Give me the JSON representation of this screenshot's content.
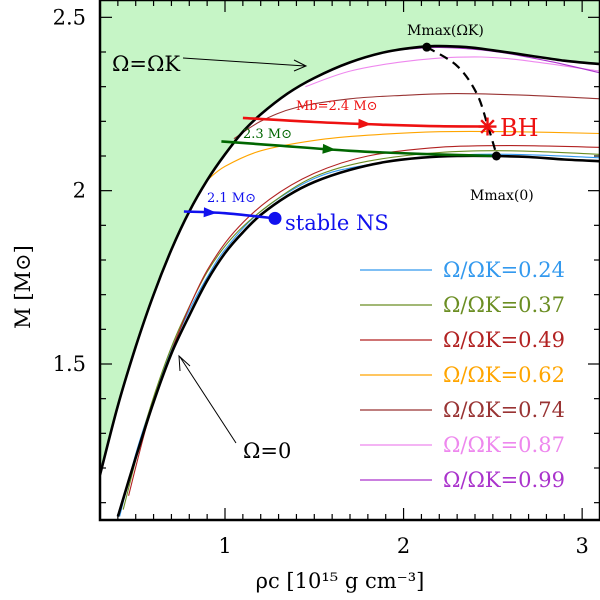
{
  "chart_data": {
    "type": "line",
    "xlabel": "ρc [10¹⁵ g cm⁻³]",
    "ylabel": "M [M⊙]",
    "xlim": [
      0.3,
      3.1
    ],
    "ylim": [
      1.05,
      2.55
    ],
    "xticks": [
      1,
      2,
      3
    ],
    "yticks": [
      1.5,
      2,
      2.5
    ],
    "grid": false,
    "legend_position": "bottom-right",
    "colors": {
      "stable_region_fill": "#c6f5c6",
      "kepler_sequence": "#000000",
      "static_sequence": "#000000",
      "stability_limit": "#000000",
      "track_2_4": "#ee1111",
      "track_2_3": "#006600",
      "track_2_1": "#1111ee"
    },
    "boundary_curves": {
      "kepler": {
        "name": "Ω=ΩK",
        "points": [
          [
            0.3,
            1.18
          ],
          [
            0.4,
            1.38
          ],
          [
            0.5,
            1.55
          ],
          [
            0.6,
            1.7
          ],
          [
            0.7,
            1.83
          ],
          [
            0.8,
            1.94
          ],
          [
            0.9,
            2.03
          ],
          [
            1.0,
            2.105
          ],
          [
            1.1,
            2.17
          ],
          [
            1.2,
            2.22
          ],
          [
            1.35,
            2.28
          ],
          [
            1.5,
            2.325
          ],
          [
            1.7,
            2.37
          ],
          [
            1.9,
            2.4
          ],
          [
            2.1,
            2.415
          ],
          [
            2.2,
            2.417
          ],
          [
            2.35,
            2.414
          ],
          [
            2.5,
            2.405
          ],
          [
            2.7,
            2.39
          ],
          [
            2.9,
            2.375
          ],
          [
            3.1,
            2.365
          ]
        ]
      },
      "static": {
        "name": "Ω=0",
        "points": [
          [
            0.4,
            1.06
          ],
          [
            0.5,
            1.23
          ],
          [
            0.6,
            1.39
          ],
          [
            0.7,
            1.53
          ],
          [
            0.8,
            1.64
          ],
          [
            0.9,
            1.74
          ],
          [
            1.0,
            1.82
          ],
          [
            1.1,
            1.88
          ],
          [
            1.2,
            1.93
          ],
          [
            1.35,
            1.985
          ],
          [
            1.5,
            2.025
          ],
          [
            1.7,
            2.06
          ],
          [
            1.9,
            2.083
          ],
          [
            2.1,
            2.095
          ],
          [
            2.3,
            2.1
          ],
          [
            2.5,
            2.1
          ],
          [
            2.7,
            2.097
          ],
          [
            2.9,
            2.09
          ],
          [
            3.1,
            2.085
          ]
        ]
      }
    },
    "constant_rotation_sequences": [
      {
        "name": "Ω/ΩK=0.24",
        "color": "#3399ee",
        "points": [
          [
            0.41,
            1.06
          ],
          [
            0.5,
            1.24
          ],
          [
            0.6,
            1.4
          ],
          [
            0.7,
            1.54
          ],
          [
            0.8,
            1.655
          ],
          [
            0.9,
            1.75
          ],
          [
            1.0,
            1.83
          ],
          [
            1.2,
            1.94
          ],
          [
            1.5,
            2.035
          ],
          [
            1.8,
            2.075
          ],
          [
            2.2,
            2.1
          ],
          [
            2.6,
            2.105
          ],
          [
            3.1,
            2.095
          ]
        ]
      },
      {
        "name": "Ω/ΩK=0.37",
        "color": "#6b8e23",
        "points": [
          [
            0.43,
            1.08
          ],
          [
            0.55,
            1.32
          ],
          [
            0.65,
            1.48
          ],
          [
            0.75,
            1.61
          ],
          [
            0.9,
            1.765
          ],
          [
            1.05,
            1.87
          ],
          [
            1.25,
            1.96
          ],
          [
            1.5,
            2.04
          ],
          [
            1.8,
            2.085
          ],
          [
            2.2,
            2.11
          ],
          [
            2.6,
            2.115
          ],
          [
            3.1,
            2.105
          ]
        ]
      },
      {
        "name": "Ω/ΩK=0.49",
        "color": "#b22222",
        "points": [
          [
            0.46,
            1.12
          ],
          [
            0.56,
            1.32
          ],
          [
            0.66,
            1.48
          ],
          [
            0.78,
            1.64
          ],
          [
            0.9,
            1.77
          ],
          [
            1.05,
            1.88
          ],
          [
            1.25,
            1.975
          ],
          [
            1.5,
            2.05
          ],
          [
            1.8,
            2.1
          ],
          [
            2.2,
            2.125
          ],
          [
            2.6,
            2.13
          ],
          [
            3.1,
            2.125
          ]
        ]
      },
      {
        "name": "Ω/ΩK=0.62",
        "color": "#ffa500",
        "points": [
          [
            0.9,
            2.03
          ],
          [
            1.0,
            2.07
          ],
          [
            1.2,
            2.115
          ],
          [
            1.5,
            2.145
          ],
          [
            1.8,
            2.16
          ],
          [
            2.2,
            2.17
          ],
          [
            2.6,
            2.17
          ],
          [
            3.1,
            2.165
          ]
        ]
      },
      {
        "name": "Ω/ΩK=0.74",
        "color": "#993333",
        "points": [
          [
            1.05,
            2.15
          ],
          [
            1.2,
            2.2
          ],
          [
            1.4,
            2.24
          ],
          [
            1.7,
            2.265
          ],
          [
            2.0,
            2.275
          ],
          [
            2.3,
            2.28
          ],
          [
            2.7,
            2.275
          ],
          [
            3.1,
            2.265
          ]
        ]
      },
      {
        "name": "Ω/ΩK=0.87",
        "color": "#ee88ee",
        "points": [
          [
            1.45,
            2.3
          ],
          [
            1.7,
            2.345
          ],
          [
            2.0,
            2.372
          ],
          [
            2.3,
            2.385
          ],
          [
            2.6,
            2.38
          ],
          [
            3.1,
            2.345
          ]
        ]
      },
      {
        "name": "Ω/ΩK=0.99",
        "color": "#aa33cc",
        "points": [
          [
            1.95,
            2.405
          ],
          [
            2.2,
            2.413
          ],
          [
            2.5,
            2.402
          ],
          [
            2.8,
            2.375
          ],
          [
            3.1,
            2.34
          ]
        ]
      }
    ],
    "stability_limit": {
      "points": [
        [
          2.13,
          2.414
        ],
        [
          2.3,
          2.36
        ],
        [
          2.41,
          2.28
        ],
        [
          2.47,
          2.19
        ],
        [
          2.52,
          2.105
        ]
      ]
    },
    "constant_baryon_mass_tracks": [
      {
        "name": "Mb=2.4 M⊙",
        "color": "#ee1111",
        "points": [
          [
            1.1,
            2.21
          ],
          [
            1.5,
            2.198
          ],
          [
            1.9,
            2.19
          ],
          [
            2.2,
            2.186
          ],
          [
            2.47,
            2.185
          ]
        ],
        "end": [
          2.47,
          2.185
        ]
      },
      {
        "name": "2.3 M⊙",
        "color": "#006600",
        "points": [
          [
            0.98,
            2.142
          ],
          [
            1.3,
            2.13
          ],
          [
            1.7,
            2.115
          ],
          [
            2.1,
            2.106
          ],
          [
            2.52,
            2.1
          ]
        ],
        "end": [
          2.52,
          2.1
        ]
      },
      {
        "name": "2.1 M⊙",
        "color": "#1111ee",
        "points": [
          [
            0.77,
            1.94
          ],
          [
            1.0,
            1.935
          ],
          [
            1.28,
            1.92
          ]
        ],
        "end": [
          1.28,
          1.92
        ]
      }
    ],
    "markers": [
      {
        "label": "Mmax(ΩK)",
        "x": 2.13,
        "y": 2.414,
        "color": "#000000"
      },
      {
        "label": "Mmax(0)",
        "x": 2.52,
        "y": 2.1,
        "color": "#000000"
      },
      {
        "label": "stable NS",
        "x": 1.28,
        "y": 1.92,
        "color": "#1111ee"
      }
    ],
    "annotations": {
      "kepler_label": "Ω=ΩK",
      "static_label": "Ω=0",
      "mmax_kepler": "Mmax(ΩK)",
      "mmax_static": "Mmax(0)",
      "bh": "BH",
      "stable_ns": "stable NS",
      "mb_24": "Mb=2.4 M⊙",
      "mb_23": "2.3 M⊙",
      "mb_21": "2.1 M⊙"
    }
  }
}
